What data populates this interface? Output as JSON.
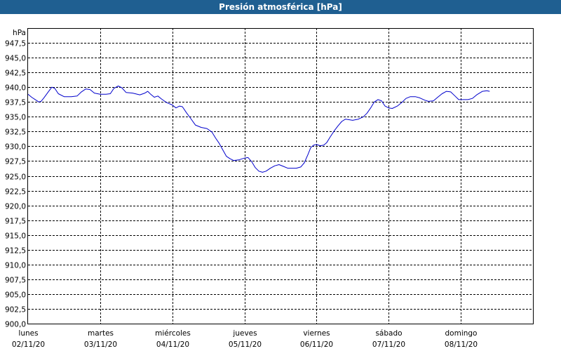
{
  "chart_data": {
    "type": "line",
    "title": "Presión atmosférica [hPa]",
    "ylabel": "hPa",
    "ylim": [
      900,
      950
    ],
    "yticks": [
      "900,0",
      "902,5",
      "905,0",
      "907,5",
      "910,0",
      "912,5",
      "915,0",
      "917,5",
      "920,0",
      "922,5",
      "925,0",
      "927,5",
      "930,0",
      "932,5",
      "935,0",
      "937,5",
      "940,0",
      "942,5",
      "945,0",
      "947,5"
    ],
    "xlim": [
      0,
      7.0
    ],
    "day_labels": [
      {
        "day": "lunes",
        "date": "02/11/20"
      },
      {
        "day": "martes",
        "date": "03/11/20"
      },
      {
        "day": "miércoles",
        "date": "04/11/20"
      },
      {
        "day": "jueves",
        "date": "05/11/20"
      },
      {
        "day": "viernes",
        "date": "06/11/20"
      },
      {
        "day": "sábado",
        "date": "07/11/20"
      },
      {
        "day": "domingo",
        "date": "08/11/20"
      }
    ],
    "grid": true,
    "series": [
      {
        "color": "#0000cc",
        "points": [
          [
            0.0,
            938.8
          ],
          [
            0.05,
            938.3
          ],
          [
            0.1,
            937.9
          ],
          [
            0.15,
            937.5
          ],
          [
            0.18,
            937.6
          ],
          [
            0.22,
            938.2
          ],
          [
            0.28,
            939.2
          ],
          [
            0.33,
            940.0
          ],
          [
            0.37,
            939.8
          ],
          [
            0.42,
            938.9
          ],
          [
            0.5,
            938.4
          ],
          [
            0.6,
            938.4
          ],
          [
            0.68,
            938.5
          ],
          [
            0.74,
            939.2
          ],
          [
            0.8,
            939.7
          ],
          [
            0.86,
            939.6
          ],
          [
            0.92,
            939.0
          ],
          [
            1.0,
            938.8
          ],
          [
            1.08,
            938.8
          ],
          [
            1.14,
            938.9
          ],
          [
            1.19,
            939.8
          ],
          [
            1.25,
            940.2
          ],
          [
            1.3,
            939.9
          ],
          [
            1.36,
            939.1
          ],
          [
            1.45,
            939.0
          ],
          [
            1.55,
            938.7
          ],
          [
            1.62,
            939.0
          ],
          [
            1.66,
            939.3
          ],
          [
            1.7,
            938.8
          ],
          [
            1.75,
            938.3
          ],
          [
            1.8,
            938.5
          ],
          [
            1.85,
            938.0
          ],
          [
            1.92,
            937.4
          ],
          [
            2.0,
            937.0
          ],
          [
            2.05,
            936.5
          ],
          [
            2.1,
            936.8
          ],
          [
            2.14,
            936.7
          ],
          [
            2.2,
            935.6
          ],
          [
            2.25,
            934.8
          ],
          [
            2.32,
            933.6
          ],
          [
            2.4,
            933.2
          ],
          [
            2.48,
            933.0
          ],
          [
            2.55,
            932.4
          ],
          [
            2.6,
            931.4
          ],
          [
            2.65,
            930.5
          ],
          [
            2.7,
            929.4
          ],
          [
            2.75,
            928.3
          ],
          [
            2.8,
            927.9
          ],
          [
            2.85,
            927.6
          ],
          [
            2.92,
            927.7
          ],
          [
            3.0,
            928.0
          ],
          [
            3.05,
            928.1
          ],
          [
            3.1,
            927.4
          ],
          [
            3.15,
            926.4
          ],
          [
            3.2,
            925.8
          ],
          [
            3.25,
            925.6
          ],
          [
            3.3,
            925.8
          ],
          [
            3.36,
            926.3
          ],
          [
            3.42,
            926.7
          ],
          [
            3.48,
            926.9
          ],
          [
            3.54,
            926.6
          ],
          [
            3.6,
            926.3
          ],
          [
            3.66,
            926.3
          ],
          [
            3.72,
            926.3
          ],
          [
            3.78,
            926.5
          ],
          [
            3.83,
            927.2
          ],
          [
            3.88,
            928.6
          ],
          [
            3.92,
            929.8
          ],
          [
            3.96,
            930.2
          ],
          [
            4.0,
            930.3
          ],
          [
            4.05,
            930.1
          ],
          [
            4.1,
            930.2
          ],
          [
            4.14,
            930.6
          ],
          [
            4.19,
            931.6
          ],
          [
            4.25,
            932.7
          ],
          [
            4.3,
            933.5
          ],
          [
            4.35,
            934.2
          ],
          [
            4.4,
            934.6
          ],
          [
            4.45,
            934.5
          ],
          [
            4.5,
            934.4
          ],
          [
            4.58,
            934.6
          ],
          [
            4.65,
            935.0
          ],
          [
            4.7,
            935.6
          ],
          [
            4.75,
            936.5
          ],
          [
            4.8,
            937.5
          ],
          [
            4.85,
            937.9
          ],
          [
            4.9,
            937.7
          ],
          [
            4.95,
            936.8
          ],
          [
            5.0,
            936.5
          ],
          [
            5.05,
            936.4
          ],
          [
            5.12,
            936.8
          ],
          [
            5.18,
            937.4
          ],
          [
            5.24,
            938.1
          ],
          [
            5.3,
            938.4
          ],
          [
            5.37,
            938.4
          ],
          [
            5.43,
            938.2
          ],
          [
            5.5,
            937.8
          ],
          [
            5.55,
            937.6
          ],
          [
            5.62,
            937.7
          ],
          [
            5.68,
            938.3
          ],
          [
            5.74,
            938.9
          ],
          [
            5.8,
            939.3
          ],
          [
            5.86,
            939.2
          ],
          [
            5.92,
            938.5
          ],
          [
            5.97,
            937.9
          ],
          [
            6.02,
            937.9
          ],
          [
            6.1,
            937.9
          ],
          [
            6.16,
            938.1
          ],
          [
            6.22,
            938.7
          ],
          [
            6.3,
            939.3
          ],
          [
            6.36,
            939.4
          ],
          [
            6.4,
            939.3
          ]
        ]
      }
    ]
  }
}
